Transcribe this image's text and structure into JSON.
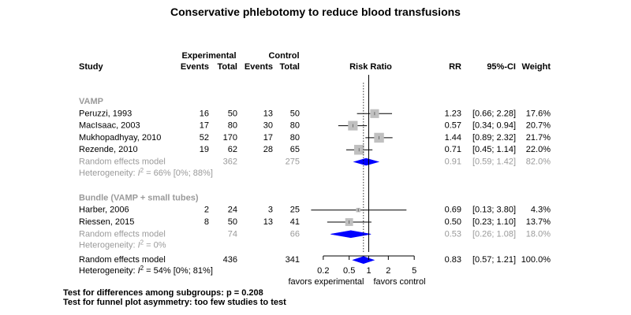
{
  "chart_data": {
    "type": "forest",
    "title": "Conservative phlebotomy to reduce blood transfusions",
    "header": {
      "experimental": "Experimental",
      "control": "Control",
      "study": "Study",
      "events_e": "Events",
      "total_e": "Total",
      "events_c": "Events",
      "total_c": "Total",
      "risk_ratio": "Risk Ratio",
      "rr": "RR",
      "ci": "95%-CI",
      "weight": "Weight"
    },
    "axis": {
      "scale": "log",
      "ticks": [
        0.2,
        0.5,
        1,
        2,
        5
      ],
      "tick_labels": [
        "0.2",
        "0.5",
        "1",
        "2",
        "5"
      ],
      "label_left": "favors experimental",
      "label_right": "favors control",
      "reference_line": 1,
      "pooled_line": 0.83
    },
    "groups": [
      {
        "label": "VAMP",
        "studies": [
          {
            "name": "Peruzzi, 1993",
            "events_e": "16",
            "total_e": "50",
            "events_c": "13",
            "total_c": "50",
            "rr": 1.23,
            "lo": 0.66,
            "hi": 2.28,
            "rr_text": "1.23",
            "ci_text": "[0.66; 2.28]",
            "weight": 17.6,
            "weight_text": "17.6%"
          },
          {
            "name": "MacIsaac, 2003",
            "events_e": "17",
            "total_e": "80",
            "events_c": "30",
            "total_c": "80",
            "rr": 0.57,
            "lo": 0.34,
            "hi": 0.94,
            "rr_text": "0.57",
            "ci_text": "[0.34; 0.94]",
            "weight": 20.7,
            "weight_text": "20.7%"
          },
          {
            "name": "Mukhopadhyay, 2010",
            "events_e": "52",
            "total_e": "170",
            "events_c": "17",
            "total_c": "80",
            "rr": 1.44,
            "lo": 0.89,
            "hi": 2.32,
            "rr_text": "1.44",
            "ci_text": "[0.89; 2.32]",
            "weight": 21.7,
            "weight_text": "21.7%"
          },
          {
            "name": "Rezende, 2010",
            "events_e": "19",
            "total_e": "62",
            "events_c": "28",
            "total_c": "65",
            "rr": 0.71,
            "lo": 0.45,
            "hi": 1.14,
            "rr_text": "0.71",
            "ci_text": "[0.45; 1.14]",
            "weight": 22.0,
            "weight_text": "22.0%"
          }
        ],
        "pooled": {
          "label": "Random effects model",
          "total_e": "362",
          "total_c": "275",
          "rr": 0.91,
          "lo": 0.59,
          "hi": 1.42,
          "rr_text": "0.91",
          "ci_text": "[0.59; 1.42]",
          "weight_text": "82.0%"
        },
        "heterogeneity": {
          "prefix": "Heterogeneity: ",
          "i2": "I",
          "sup": "2",
          "rest": " = 66% [0%; 88%]"
        }
      },
      {
        "label": "Bundle (VAMP + small tubes)",
        "studies": [
          {
            "name": "Harber, 2006",
            "events_e": "2",
            "total_e": "24",
            "events_c": "3",
            "total_c": "25",
            "rr": 0.69,
            "lo": 0.13,
            "hi": 3.8,
            "rr_text": "0.69",
            "ci_text": "[0.13; 3.80]",
            "weight": 4.3,
            "weight_text": "4.3%"
          },
          {
            "name": "Riessen, 2015",
            "events_e": "8",
            "total_e": "50",
            "events_c": "13",
            "total_c": "41",
            "rr": 0.5,
            "lo": 0.23,
            "hi": 1.1,
            "rr_text": "0.50",
            "ci_text": "[0.23; 1.10]",
            "weight": 13.7,
            "weight_text": "13.7%"
          }
        ],
        "pooled": {
          "label": "Random effects model",
          "total_e": "74",
          "total_c": "66",
          "rr": 0.53,
          "lo": 0.26,
          "hi": 1.08,
          "rr_text": "0.53",
          "ci_text": "[0.26; 1.08]",
          "weight_text": "18.0%"
        },
        "heterogeneity": {
          "prefix": "Heterogeneity: ",
          "i2": "I",
          "sup": "2",
          "rest": " = 0%"
        }
      }
    ],
    "overall": {
      "label": "Random effects model",
      "total_e": "436",
      "total_c": "341",
      "rr": 0.83,
      "lo": 0.57,
      "hi": 1.21,
      "rr_text": "0.83",
      "ci_text": "[0.57; 1.21]",
      "weight_text": "100.0%",
      "heterogeneity": {
        "prefix": "Heterogeneity: ",
        "i2": "I",
        "sup": "2",
        "rest": " = 54% [0%; 81%]"
      }
    },
    "footnotes": [
      "Test for differences among subgroups: p = 0.208",
      "Test for funnel plot asymmetry: too few studies to test"
    ],
    "colors": {
      "diamond": "#0000ff",
      "square": "#c0c0c0",
      "subgroup_text": "#9a9a9a"
    }
  }
}
